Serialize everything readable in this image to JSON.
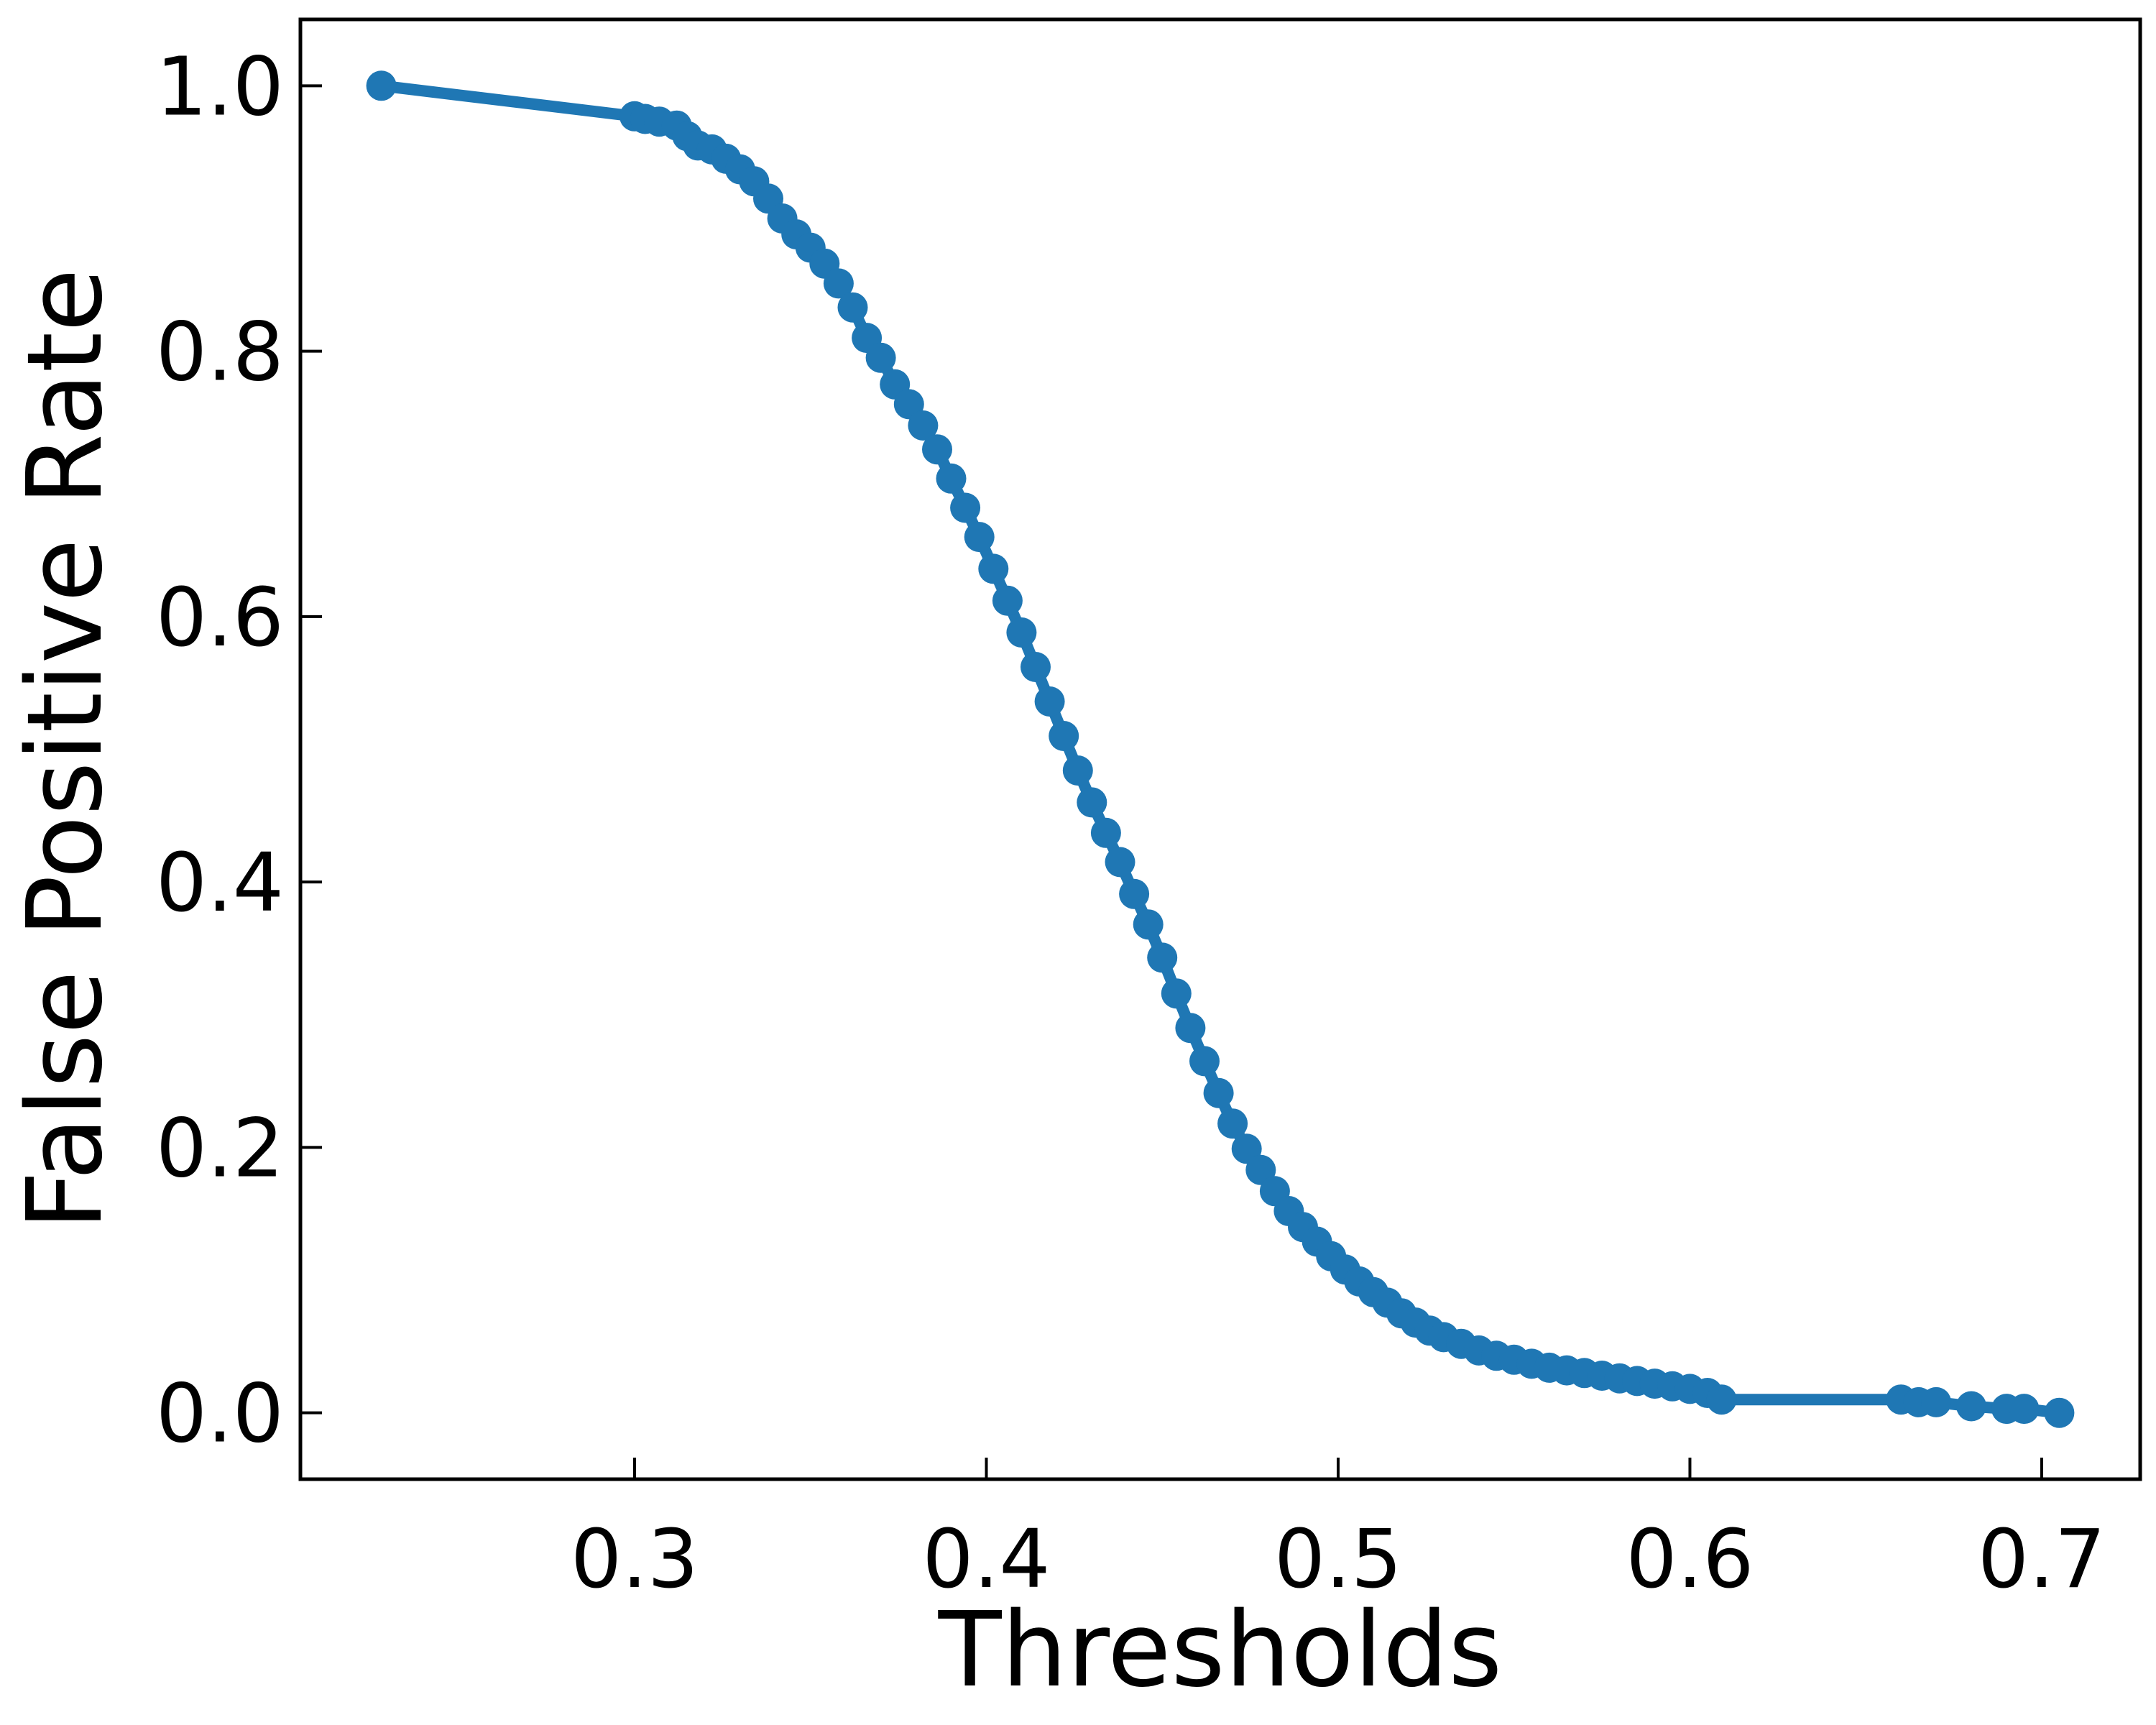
{
  "chart_data": {
    "type": "line",
    "title": "",
    "xlabel": "Thresholds",
    "ylabel": "False Positive Rate",
    "xlim": [
      0.205,
      0.728
    ],
    "ylim": [
      -0.05,
      1.05
    ],
    "x_ticks": [
      0.3,
      0.4,
      0.5,
      0.6,
      0.7
    ],
    "x_tick_labels": [
      "0.3",
      "0.4",
      "0.5",
      "0.6",
      "0.7"
    ],
    "y_ticks": [
      0.0,
      0.2,
      0.4,
      0.6,
      0.8,
      1.0
    ],
    "y_tick_labels": [
      "0.0",
      "0.2",
      "0.4",
      "0.6",
      "0.8",
      "1.0"
    ],
    "grid": false,
    "legend": null,
    "series": [
      {
        "color": "#1f77b4",
        "marker": "circle",
        "x": [
          0.228,
          0.3,
          0.303,
          0.307,
          0.312,
          0.315,
          0.318,
          0.322,
          0.326,
          0.33,
          0.334,
          0.338,
          0.342,
          0.346,
          0.35,
          0.354,
          0.358,
          0.362,
          0.366,
          0.37,
          0.374,
          0.378,
          0.382,
          0.386,
          0.39,
          0.394,
          0.398,
          0.402,
          0.406,
          0.41,
          0.414,
          0.418,
          0.422,
          0.426,
          0.43,
          0.434,
          0.438,
          0.442,
          0.446,
          0.45,
          0.454,
          0.458,
          0.462,
          0.466,
          0.47,
          0.474,
          0.478,
          0.482,
          0.486,
          0.49,
          0.494,
          0.498,
          0.502,
          0.506,
          0.51,
          0.514,
          0.518,
          0.522,
          0.526,
          0.53,
          0.535,
          0.54,
          0.545,
          0.55,
          0.555,
          0.56,
          0.565,
          0.57,
          0.575,
          0.58,
          0.585,
          0.59,
          0.595,
          0.6,
          0.605,
          0.609,
          0.66,
          0.665,
          0.67,
          0.68,
          0.69,
          0.695,
          0.705
        ],
        "y": [
          1.0,
          0.977,
          0.975,
          0.973,
          0.97,
          0.962,
          0.955,
          0.952,
          0.945,
          0.937,
          0.928,
          0.915,
          0.9,
          0.888,
          0.878,
          0.866,
          0.851,
          0.833,
          0.81,
          0.795,
          0.775,
          0.76,
          0.744,
          0.726,
          0.704,
          0.682,
          0.66,
          0.636,
          0.612,
          0.588,
          0.562,
          0.536,
          0.51,
          0.484,
          0.46,
          0.437,
          0.415,
          0.391,
          0.368,
          0.343,
          0.316,
          0.29,
          0.265,
          0.241,
          0.218,
          0.199,
          0.183,
          0.167,
          0.152,
          0.14,
          0.129,
          0.118,
          0.108,
          0.099,
          0.091,
          0.083,
          0.075,
          0.068,
          0.062,
          0.057,
          0.052,
          0.047,
          0.043,
          0.04,
          0.037,
          0.034,
          0.032,
          0.03,
          0.028,
          0.026,
          0.024,
          0.022,
          0.02,
          0.018,
          0.015,
          0.01,
          0.01,
          0.008,
          0.008,
          0.005,
          0.003,
          0.003,
          0.0
        ]
      }
    ]
  }
}
